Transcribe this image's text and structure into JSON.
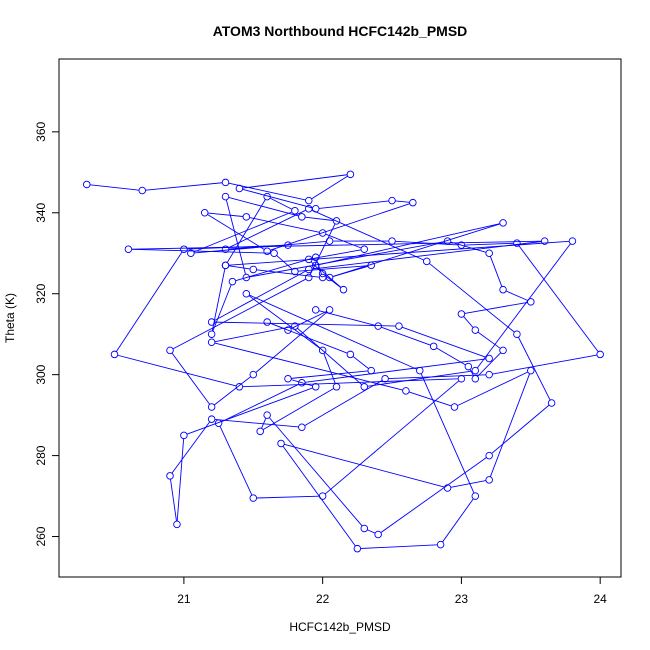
{
  "chart_data": {
    "type": "line",
    "title": "ATOM3 Northbound HCFC142b_PMSD",
    "xlabel": "HCFC142b_PMSD",
    "ylabel": "Theta (K)",
    "xlim": [
      20.1,
      24.15
    ],
    "ylim": [
      250,
      378
    ],
    "xticks": [
      21,
      22,
      23,
      24
    ],
    "yticks": [
      260,
      280,
      300,
      320,
      340,
      360
    ],
    "grid": false,
    "legend": "none",
    "marker": "open-circle",
    "color": "#0000ff",
    "series": [
      {
        "x": [
          20.3,
          20.7,
          21.3,
          21.9,
          22.2,
          21.4,
          21.95,
          22.5,
          22.65,
          21.6,
          21.15,
          21.45,
          22.0,
          22.3,
          21.9,
          22.0,
          22.15,
          21.95,
          23.3,
          22.05,
          22.35,
          21.8,
          21.65,
          20.6,
          23.6,
          21.9,
          21.2,
          22.55,
          23.2,
          21.85,
          21.25,
          21.5,
          22.0,
          23.0,
          21.4,
          20.5,
          21.0,
          21.75,
          21.3,
          21.9,
          22.75,
          23.4,
          23.65,
          23.2,
          22.4,
          22.3,
          21.6,
          21.55,
          22.1,
          22.0,
          21.45,
          22.7,
          23.1,
          22.85,
          22.25,
          21.7,
          22.9,
          23.2,
          23.5,
          22.95,
          22.6,
          21.2,
          21.8,
          22.3,
          23.1,
          23.8,
          21.3,
          21.5,
          22.0,
          21.95,
          21.35,
          21.2,
          21.3,
          21.6,
          21.8,
          21.05,
          22.05,
          22.5,
          23.0,
          23.4,
          24.0,
          23.2,
          22.45,
          21.85,
          21.2,
          20.9,
          20.95,
          21.0,
          21.95,
          21.75,
          22.35,
          22.2,
          21.6,
          21.75,
          22.05,
          21.5,
          21.2,
          20.9,
          21.9,
          22.1,
          21.85,
          21.3,
          21.45,
          22.9,
          23.2,
          23.3,
          23.5,
          23.0,
          23.1,
          23.3,
          23.1,
          23.05,
          22.8,
          22.4,
          21.95
        ],
        "y": [
          347,
          345.5,
          347.5,
          343,
          349.5,
          346,
          341,
          343,
          342.5,
          330.5,
          340,
          339,
          335,
          331,
          328.5,
          325,
          321,
          327,
          337.5,
          324,
          327,
          325.5,
          330,
          331,
          333,
          326,
          313,
          312,
          304,
          298,
          288,
          269.5,
          270,
          299,
          297,
          305,
          331,
          332,
          331,
          341,
          328,
          310,
          293,
          280,
          260.5,
          262,
          290,
          286,
          297,
          306,
          320,
          301,
          270,
          258,
          257,
          283,
          272,
          274,
          301,
          292,
          296,
          308,
          312,
          297,
          301,
          333,
          327,
          326,
          324,
          329,
          323,
          310,
          327,
          344,
          340.5,
          330,
          333,
          333,
          332,
          332.5,
          305,
          300,
          299,
          287,
          289,
          275,
          263,
          285,
          297,
          299,
          301,
          305,
          313,
          311,
          316,
          300,
          292,
          306,
          324,
          338,
          339,
          344,
          324,
          333,
          330,
          321,
          318,
          315,
          311,
          306,
          299,
          302,
          307,
          312,
          316
        ]
      }
    ]
  }
}
